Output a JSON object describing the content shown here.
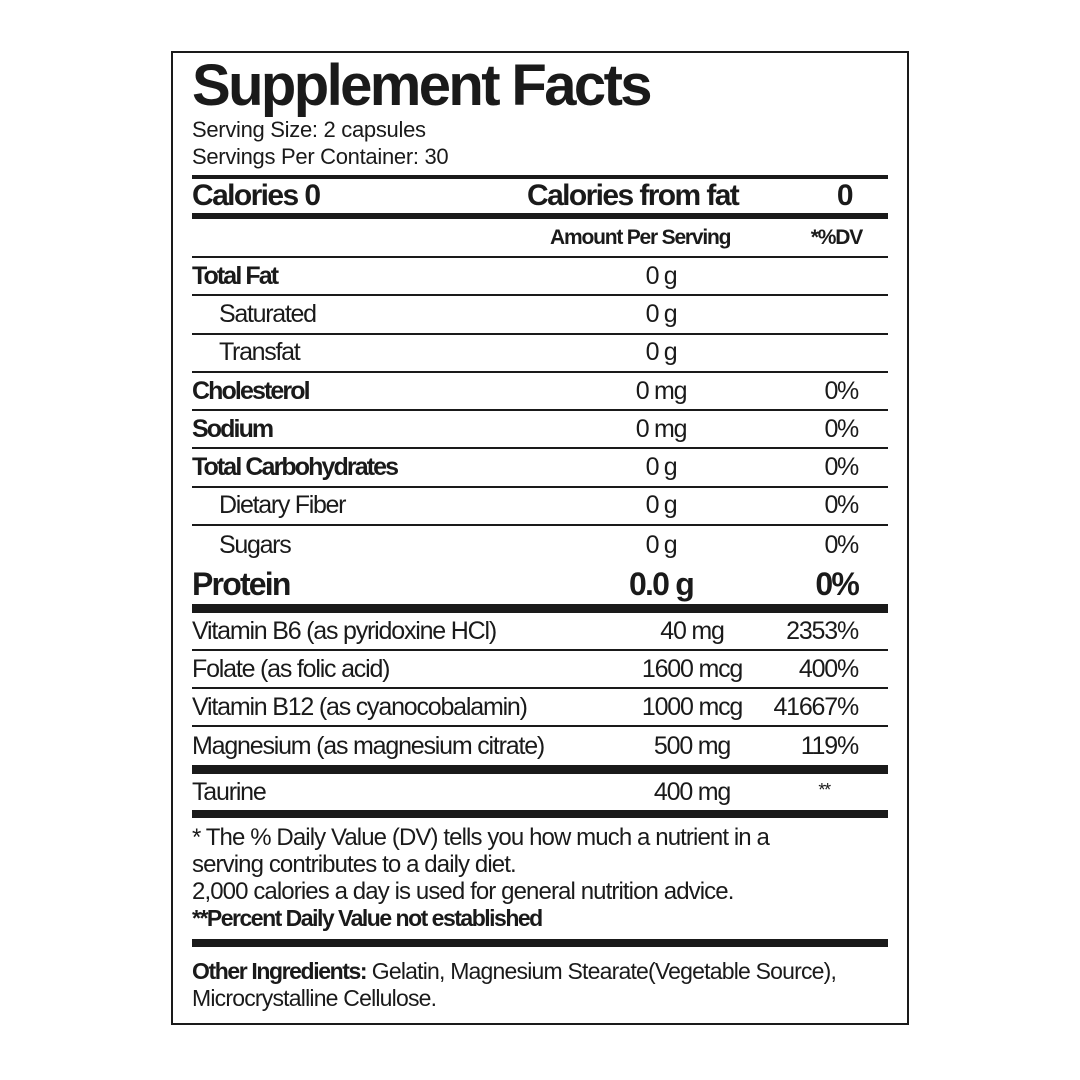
{
  "title": "Supplement Facts",
  "serving_size": "Serving Size: 2 capsules",
  "servings_per_container": "Servings Per Container: 30",
  "calories": {
    "label": "Calories 0",
    "from_fat_label": "Calories from fat",
    "from_fat_value": "0"
  },
  "header": {
    "amount": "Amount Per Serving",
    "dv": "*%DV"
  },
  "nutrients": [
    {
      "name": "Total Fat",
      "amount": "0 g",
      "dv": ""
    },
    {
      "name": "Saturated",
      "amount": "0 g",
      "dv": ""
    },
    {
      "name": "Transfat",
      "amount": "0 g",
      "dv": ""
    },
    {
      "name": "Cholesterol",
      "amount": "0 mg",
      "dv": "0%"
    },
    {
      "name": "Sodium",
      "amount": "0 mg",
      "dv": "0%"
    },
    {
      "name": "Total Carbohydrates",
      "amount": "0 g",
      "dv": "0%"
    },
    {
      "name": "Dietary Fiber",
      "amount": "0 g",
      "dv": "0%"
    },
    {
      "name": "Sugars",
      "amount": "0 g",
      "dv": "0%"
    }
  ],
  "protein": {
    "name": "Protein",
    "amount": "0.0 g",
    "dv": "0%"
  },
  "vitamins": [
    {
      "name": "Vitamin B6 (as pyridoxine HCl)",
      "amount": "40 mg",
      "dv": "2353%"
    },
    {
      "name": "Folate (as folic acid)",
      "amount": "1600 mcg",
      "dv": "400%"
    },
    {
      "name": "Vitamin B12 (as cyanocobalamin)",
      "amount": "1000 mcg",
      "dv": "41667%"
    },
    {
      "name": "Magnesium (as magnesium citrate)",
      "amount": "500 mg",
      "dv": "119%"
    }
  ],
  "taurine": {
    "name": "Taurine",
    "amount": "400 mg",
    "dv": "**"
  },
  "footnotes": [
    "* The % Daily Value (DV) tells you how much a nutrient in a",
    "serving contributes to a daily diet.",
    "2,000 calories a day is used for general nutrition advice.",
    "**Percent Daily Value not established"
  ],
  "other_ingredients": {
    "label": "Other Ingredients:",
    "line1": " Gelatin, Magnesium Stearate(Vegetable Source),",
    "line2": "Microcrystalline Cellulose."
  }
}
